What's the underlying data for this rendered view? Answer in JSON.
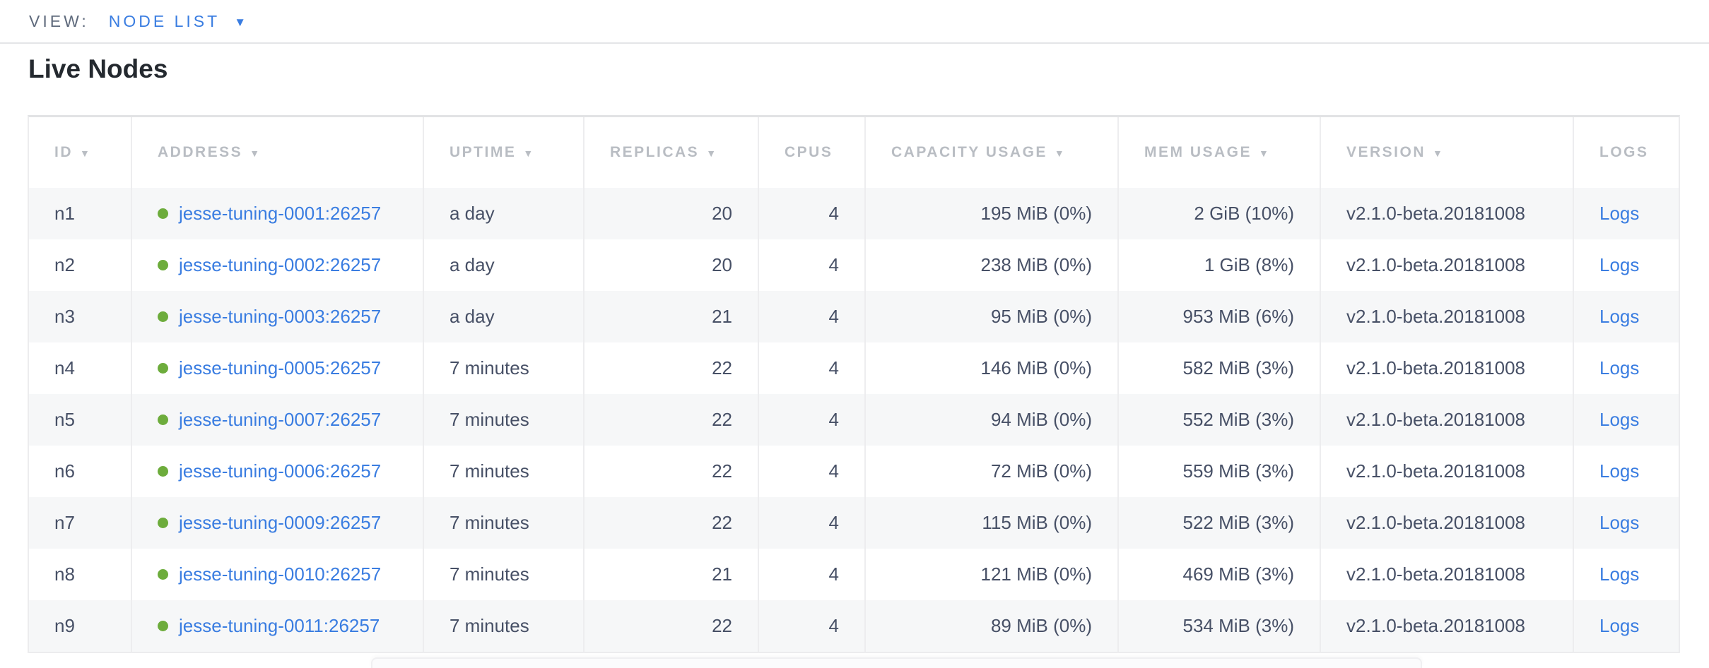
{
  "colors": {
    "accent_blue": "#3a7de1",
    "healthy_green": "#6dac3c",
    "header_gray": "#b9bdc3",
    "text_slate": "#475066"
  },
  "view_bar": {
    "label": "VIEW:",
    "selected_view": "NODE LIST",
    "caret_icon": "▼"
  },
  "section": {
    "title": "Live Nodes"
  },
  "table": {
    "columns": [
      {
        "key": "id",
        "label": "ID",
        "sortable": true,
        "align": "left"
      },
      {
        "key": "address",
        "label": "ADDRESS",
        "sortable": true,
        "align": "left"
      },
      {
        "key": "uptime",
        "label": "UPTIME",
        "sortable": true,
        "align": "left"
      },
      {
        "key": "replicas",
        "label": "REPLICAS",
        "sortable": true,
        "align": "right"
      },
      {
        "key": "cpus",
        "label": "CPUS",
        "sortable": false,
        "align": "right"
      },
      {
        "key": "capacity",
        "label": "CAPACITY USAGE",
        "sortable": true,
        "align": "right"
      },
      {
        "key": "mem",
        "label": "MEM USAGE",
        "sortable": true,
        "align": "right"
      },
      {
        "key": "version",
        "label": "VERSION",
        "sortable": true,
        "align": "left"
      },
      {
        "key": "logs",
        "label": "LOGS",
        "sortable": false,
        "align": "left"
      }
    ],
    "sort_arrow_icon": "▼",
    "status_icon": "healthy-green-dot",
    "rows": [
      {
        "id": "n1",
        "address": "jesse-tuning-0001:26257",
        "uptime": "a day",
        "replicas": "20",
        "cpus": "4",
        "capacity": "195 MiB (0%)",
        "mem": "2 GiB (10%)",
        "version": "v2.1.0-beta.20181008",
        "logs": "Logs"
      },
      {
        "id": "n2",
        "address": "jesse-tuning-0002:26257",
        "uptime": "a day",
        "replicas": "20",
        "cpus": "4",
        "capacity": "238 MiB (0%)",
        "mem": "1 GiB (8%)",
        "version": "v2.1.0-beta.20181008",
        "logs": "Logs"
      },
      {
        "id": "n3",
        "address": "jesse-tuning-0003:26257",
        "uptime": "a day",
        "replicas": "21",
        "cpus": "4",
        "capacity": "95 MiB (0%)",
        "mem": "953 MiB (6%)",
        "version": "v2.1.0-beta.20181008",
        "logs": "Logs"
      },
      {
        "id": "n4",
        "address": "jesse-tuning-0005:26257",
        "uptime": "7 minutes",
        "replicas": "22",
        "cpus": "4",
        "capacity": "146 MiB (0%)",
        "mem": "582 MiB (3%)",
        "version": "v2.1.0-beta.20181008",
        "logs": "Logs"
      },
      {
        "id": "n5",
        "address": "jesse-tuning-0007:26257",
        "uptime": "7 minutes",
        "replicas": "22",
        "cpus": "4",
        "capacity": "94 MiB (0%)",
        "mem": "552 MiB (3%)",
        "version": "v2.1.0-beta.20181008",
        "logs": "Logs"
      },
      {
        "id": "n6",
        "address": "jesse-tuning-0006:26257",
        "uptime": "7 minutes",
        "replicas": "22",
        "cpus": "4",
        "capacity": "72 MiB (0%)",
        "mem": "559 MiB (3%)",
        "version": "v2.1.0-beta.20181008",
        "logs": "Logs"
      },
      {
        "id": "n7",
        "address": "jesse-tuning-0009:26257",
        "uptime": "7 minutes",
        "replicas": "22",
        "cpus": "4",
        "capacity": "115 MiB (0%)",
        "mem": "522 MiB (3%)",
        "version": "v2.1.0-beta.20181008",
        "logs": "Logs"
      },
      {
        "id": "n8",
        "address": "jesse-tuning-0010:26257",
        "uptime": "7 minutes",
        "replicas": "21",
        "cpus": "4",
        "capacity": "121 MiB (0%)",
        "mem": "469 MiB (3%)",
        "version": "v2.1.0-beta.20181008",
        "logs": "Logs"
      },
      {
        "id": "n9",
        "address": "jesse-tuning-0011:26257",
        "uptime": "7 minutes",
        "replicas": "22",
        "cpus": "4",
        "capacity": "89 MiB (0%)",
        "mem": "534 MiB (3%)",
        "version": "v2.1.0-beta.20181008",
        "logs": "Logs"
      }
    ]
  }
}
